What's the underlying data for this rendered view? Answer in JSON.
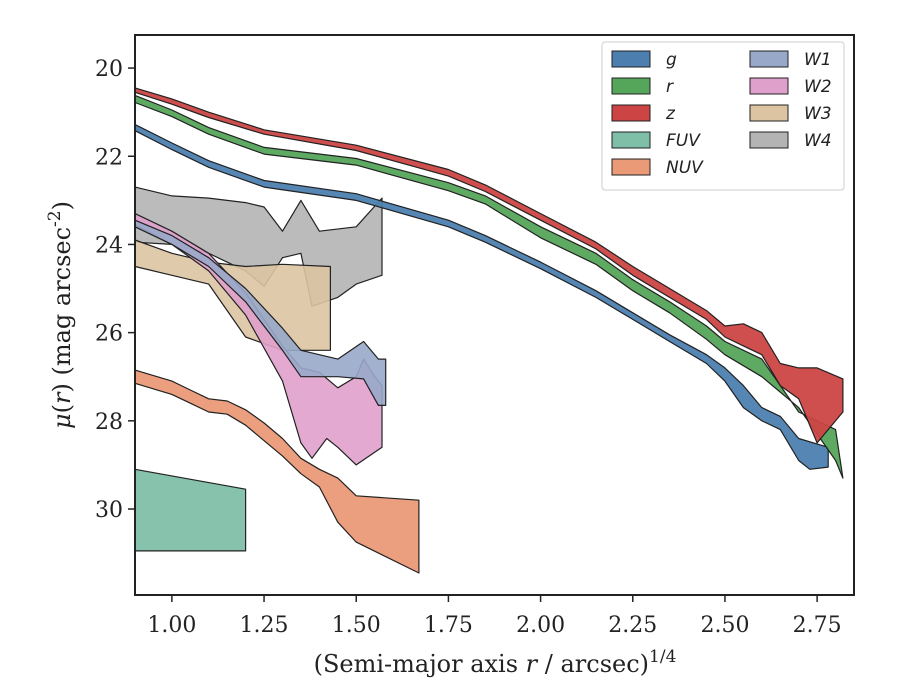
{
  "chart_data": {
    "type": "area",
    "xlabel": "(Semi-major axis r / arcsec)^{1/4}",
    "ylabel": "μ(r) (mag arcsec^{-2})",
    "xlim": [
      0.9,
      2.85
    ],
    "ylim": [
      31.95,
      19.25
    ],
    "y_inverted": true,
    "xticks": [
      1.0,
      1.25,
      1.5,
      1.75,
      2.0,
      2.25,
      2.5,
      2.75
    ],
    "xtick_labels": [
      "1.00",
      "1.25",
      "1.50",
      "1.75",
      "2.00",
      "2.25",
      "2.50",
      "2.75"
    ],
    "yticks": [
      20,
      22,
      24,
      26,
      28,
      30
    ],
    "ytick_labels": [
      "20",
      "22",
      "24",
      "26",
      "28",
      "30"
    ],
    "grid": false,
    "legend_position": "top-right",
    "legend_columns": 2,
    "series": [
      {
        "name": "g",
        "color": "#4c7fb0",
        "upper": [
          [
            0.9,
            21.28
          ],
          [
            1.0,
            21.7
          ],
          [
            1.1,
            22.1
          ],
          [
            1.25,
            22.55
          ],
          [
            1.5,
            22.85
          ],
          [
            1.75,
            23.45
          ],
          [
            1.85,
            23.8
          ],
          [
            2.0,
            24.4
          ],
          [
            2.15,
            25.05
          ],
          [
            2.25,
            25.55
          ],
          [
            2.35,
            26.05
          ],
          [
            2.45,
            26.5
          ],
          [
            2.5,
            26.8
          ],
          [
            2.55,
            27.2
          ],
          [
            2.6,
            27.7
          ],
          [
            2.65,
            27.9
          ],
          [
            2.7,
            28.4
          ],
          [
            2.78,
            28.6
          ]
        ],
        "lower": [
          [
            0.9,
            21.42
          ],
          [
            1.0,
            21.85
          ],
          [
            1.1,
            22.25
          ],
          [
            1.25,
            22.7
          ],
          [
            1.5,
            23.0
          ],
          [
            1.75,
            23.6
          ],
          [
            1.85,
            23.95
          ],
          [
            2.0,
            24.55
          ],
          [
            2.15,
            25.2
          ],
          [
            2.25,
            25.7
          ],
          [
            2.35,
            26.2
          ],
          [
            2.45,
            26.7
          ],
          [
            2.5,
            27.1
          ],
          [
            2.55,
            27.7
          ],
          [
            2.6,
            28.0
          ],
          [
            2.65,
            28.2
          ],
          [
            2.7,
            28.9
          ],
          [
            2.73,
            29.1
          ],
          [
            2.78,
            29.05
          ]
        ]
      },
      {
        "name": "r",
        "color": "#55a55a",
        "upper": [
          [
            0.9,
            20.62
          ],
          [
            1.0,
            20.95
          ],
          [
            1.1,
            21.35
          ],
          [
            1.25,
            21.8
          ],
          [
            1.5,
            22.05
          ],
          [
            1.75,
            22.6
          ],
          [
            1.85,
            22.9
          ],
          [
            2.0,
            23.6
          ],
          [
            2.15,
            24.2
          ],
          [
            2.25,
            24.8
          ],
          [
            2.35,
            25.3
          ],
          [
            2.45,
            25.85
          ],
          [
            2.5,
            26.2
          ],
          [
            2.6,
            26.6
          ],
          [
            2.7,
            27.8
          ],
          [
            2.8,
            28.2
          ]
        ],
        "lower": [
          [
            0.9,
            20.78
          ],
          [
            1.0,
            21.1
          ],
          [
            1.1,
            21.5
          ],
          [
            1.25,
            21.95
          ],
          [
            1.5,
            22.2
          ],
          [
            1.75,
            22.78
          ],
          [
            1.85,
            23.08
          ],
          [
            2.0,
            23.85
          ],
          [
            2.15,
            24.45
          ],
          [
            2.25,
            25.05
          ],
          [
            2.35,
            25.55
          ],
          [
            2.45,
            26.15
          ],
          [
            2.5,
            26.5
          ],
          [
            2.6,
            27.0
          ],
          [
            2.7,
            27.7
          ],
          [
            2.8,
            28.9
          ],
          [
            2.82,
            29.3
          ]
        ]
      },
      {
        "name": "z",
        "color": "#cc4444",
        "upper": [
          [
            0.9,
            20.45
          ],
          [
            1.0,
            20.7
          ],
          [
            1.1,
            21.0
          ],
          [
            1.25,
            21.4
          ],
          [
            1.5,
            21.75
          ],
          [
            1.75,
            22.3
          ],
          [
            1.85,
            22.65
          ],
          [
            2.0,
            23.3
          ],
          [
            2.15,
            23.95
          ],
          [
            2.25,
            24.5
          ],
          [
            2.35,
            25.0
          ],
          [
            2.45,
            25.5
          ],
          [
            2.5,
            25.85
          ],
          [
            2.55,
            25.8
          ],
          [
            2.6,
            26.0
          ],
          [
            2.65,
            26.7
          ],
          [
            2.7,
            26.8
          ],
          [
            2.75,
            26.8
          ],
          [
            2.82,
            27.05
          ]
        ],
        "lower": [
          [
            0.9,
            20.55
          ],
          [
            1.0,
            20.82
          ],
          [
            1.1,
            21.12
          ],
          [
            1.25,
            21.5
          ],
          [
            1.5,
            21.87
          ],
          [
            1.75,
            22.45
          ],
          [
            1.85,
            22.8
          ],
          [
            2.0,
            23.45
          ],
          [
            2.15,
            24.1
          ],
          [
            2.25,
            24.7
          ],
          [
            2.35,
            25.2
          ],
          [
            2.45,
            25.7
          ],
          [
            2.5,
            26.1
          ],
          [
            2.55,
            26.3
          ],
          [
            2.6,
            26.5
          ],
          [
            2.65,
            27.2
          ],
          [
            2.7,
            27.5
          ],
          [
            2.75,
            28.5
          ],
          [
            2.82,
            27.8
          ]
        ]
      },
      {
        "name": "FUV",
        "color": "#7fbfa8",
        "upper": [
          [
            0.9,
            29.1
          ],
          [
            1.2,
            29.55
          ]
        ],
        "lower": [
          [
            0.9,
            30.95
          ],
          [
            1.2,
            30.95
          ]
        ]
      },
      {
        "name": "NUV",
        "color": "#eb9a78",
        "upper": [
          [
            0.9,
            26.85
          ],
          [
            1.0,
            27.1
          ],
          [
            1.05,
            27.3
          ],
          [
            1.1,
            27.5
          ],
          [
            1.15,
            27.55
          ],
          [
            1.2,
            27.75
          ],
          [
            1.25,
            28.05
          ],
          [
            1.3,
            28.4
          ],
          [
            1.35,
            28.85
          ],
          [
            1.4,
            29.1
          ],
          [
            1.45,
            29.3
          ],
          [
            1.5,
            29.7
          ],
          [
            1.67,
            29.8
          ]
        ],
        "lower": [
          [
            0.9,
            27.15
          ],
          [
            1.0,
            27.4
          ],
          [
            1.05,
            27.6
          ],
          [
            1.1,
            27.8
          ],
          [
            1.15,
            27.85
          ],
          [
            1.2,
            28.1
          ],
          [
            1.25,
            28.45
          ],
          [
            1.3,
            28.8
          ],
          [
            1.35,
            29.2
          ],
          [
            1.4,
            29.5
          ],
          [
            1.45,
            30.3
          ],
          [
            1.5,
            30.75
          ],
          [
            1.67,
            31.45
          ]
        ]
      },
      {
        "name": "W1",
        "color": "#98a8c8",
        "upper": [
          [
            0.9,
            23.45
          ],
          [
            1.0,
            23.8
          ],
          [
            1.1,
            24.3
          ],
          [
            1.2,
            25.0
          ],
          [
            1.3,
            25.9
          ],
          [
            1.35,
            26.4
          ],
          [
            1.45,
            26.6
          ],
          [
            1.52,
            26.2
          ],
          [
            1.56,
            26.6
          ],
          [
            1.58,
            26.6
          ]
        ],
        "lower": [
          [
            0.9,
            23.6
          ],
          [
            1.0,
            24.0
          ],
          [
            1.1,
            24.5
          ],
          [
            1.2,
            25.3
          ],
          [
            1.3,
            26.4
          ],
          [
            1.35,
            27.0
          ],
          [
            1.45,
            27.0
          ],
          [
            1.52,
            27.05
          ],
          [
            1.56,
            27.65
          ],
          [
            1.58,
            27.65
          ]
        ]
      },
      {
        "name": "W2",
        "color": "#e0a0cc",
        "upper": [
          [
            0.9,
            23.3
          ],
          [
            1.0,
            23.7
          ],
          [
            1.1,
            24.2
          ],
          [
            1.2,
            25.1
          ],
          [
            1.3,
            26.3
          ],
          [
            1.35,
            26.8
          ],
          [
            1.4,
            26.9
          ],
          [
            1.45,
            27.25
          ],
          [
            1.5,
            27.0
          ],
          [
            1.52,
            26.6
          ],
          [
            1.55,
            27.0
          ],
          [
            1.57,
            27.2
          ]
        ],
        "lower": [
          [
            0.9,
            23.55
          ],
          [
            1.0,
            24.0
          ],
          [
            1.1,
            24.6
          ],
          [
            1.2,
            25.6
          ],
          [
            1.3,
            27.1
          ],
          [
            1.35,
            28.5
          ],
          [
            1.38,
            28.85
          ],
          [
            1.42,
            28.4
          ],
          [
            1.45,
            28.6
          ],
          [
            1.5,
            29.0
          ],
          [
            1.57,
            28.6
          ]
        ]
      },
      {
        "name": "W3",
        "color": "#dcc4a2",
        "upper": [
          [
            0.9,
            23.9
          ],
          [
            1.0,
            24.2
          ],
          [
            1.1,
            24.4
          ],
          [
            1.2,
            24.5
          ],
          [
            1.3,
            24.45
          ],
          [
            1.43,
            24.5
          ]
        ],
        "lower": [
          [
            0.9,
            24.5
          ],
          [
            1.0,
            24.7
          ],
          [
            1.1,
            24.9
          ],
          [
            1.2,
            26.1
          ],
          [
            1.3,
            26.4
          ],
          [
            1.43,
            26.4
          ]
        ]
      },
      {
        "name": "W4",
        "color": "#b4b4b4",
        "upper": [
          [
            0.9,
            22.7
          ],
          [
            1.0,
            22.9
          ],
          [
            1.1,
            22.95
          ],
          [
            1.2,
            23.05
          ],
          [
            1.25,
            23.15
          ],
          [
            1.3,
            23.7
          ],
          [
            1.35,
            23.0
          ],
          [
            1.4,
            23.7
          ],
          [
            1.5,
            23.6
          ],
          [
            1.57,
            22.95
          ]
        ],
        "lower": [
          [
            0.9,
            23.95
          ],
          [
            1.0,
            24.0
          ],
          [
            1.1,
            24.2
          ],
          [
            1.2,
            24.6
          ],
          [
            1.25,
            24.95
          ],
          [
            1.3,
            24.3
          ],
          [
            1.35,
            24.2
          ],
          [
            1.38,
            25.4
          ],
          [
            1.45,
            25.2
          ],
          [
            1.5,
            24.9
          ],
          [
            1.57,
            24.7
          ]
        ]
      }
    ]
  }
}
